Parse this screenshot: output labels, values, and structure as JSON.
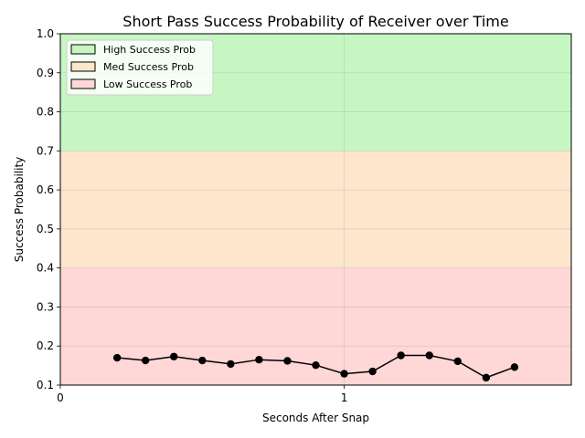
{
  "chart_data": {
    "type": "line",
    "title": "Short Pass Success Probability of Receiver over Time",
    "xlabel": "Seconds After Snap",
    "ylabel": "Success Probability",
    "xlim": [
      0,
      1.8
    ],
    "ylim": [
      0.1,
      1.0
    ],
    "xticks": [
      0,
      1
    ],
    "xtick_labels": [
      "0",
      "1"
    ],
    "yticks": [
      0.1,
      0.2,
      0.3,
      0.4,
      0.5,
      0.6,
      0.7,
      0.8,
      0.9,
      1.0
    ],
    "ytick_labels": [
      "0.1",
      "0.2",
      "0.3",
      "0.4",
      "0.5",
      "0.6",
      "0.7",
      "0.8",
      "0.9",
      "1.0"
    ],
    "grid": true,
    "legend_position": "top-left",
    "bands": [
      {
        "label": "High Success Prob",
        "y0": 0.7,
        "y1": 1.0,
        "color": "#c6f7c3"
      },
      {
        "label": "Med Success Prob",
        "y0": 0.4,
        "y1": 0.7,
        "color": "#fde6cc"
      },
      {
        "label": "Low Success Prob",
        "y0": 0.1,
        "y1": 0.4,
        "color": "#ffd7d7"
      }
    ],
    "series": [
      {
        "color": "#000000",
        "x": [
          0.2,
          0.3,
          0.4,
          0.5,
          0.6,
          0.7,
          0.8,
          0.9,
          1.0,
          1.1,
          1.2,
          1.3,
          1.4,
          1.5,
          1.6
        ],
        "y": [
          0.17,
          0.163,
          0.173,
          0.163,
          0.154,
          0.165,
          0.162,
          0.151,
          0.129,
          0.135,
          0.176,
          0.176,
          0.161,
          0.119,
          0.146
        ]
      }
    ]
  }
}
